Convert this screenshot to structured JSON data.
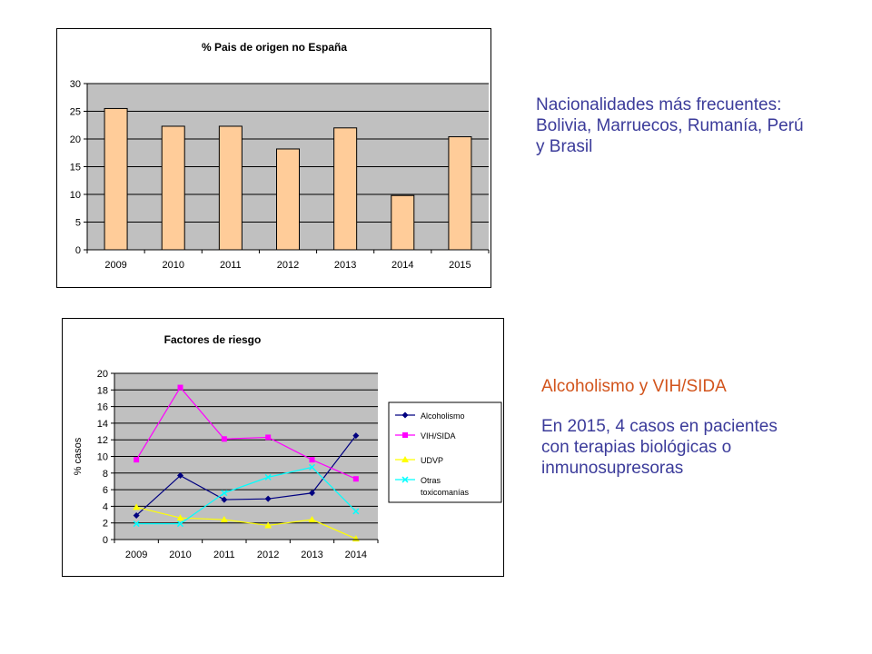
{
  "chart_data": [
    {
      "type": "bar",
      "title": "% Pais de origen no España",
      "categories": [
        "2009",
        "2010",
        "2011",
        "2012",
        "2013",
        "2014",
        "2015"
      ],
      "values": [
        25.5,
        22.3,
        22.3,
        18.2,
        22.0,
        9.8,
        20.4
      ],
      "y_ticks": [
        "0",
        "5",
        "10",
        "15",
        "20",
        "25",
        "30"
      ],
      "ylim": [
        0,
        30
      ],
      "grid": true,
      "colors": {
        "bar": "#FFCC99",
        "plot_bg": "#C0C0C0",
        "grid": "#000000"
      }
    },
    {
      "type": "line",
      "title": "Factores de riesgo",
      "ylabel": "% casos",
      "categories": [
        "2009",
        "2010",
        "2011",
        "2012",
        "2013",
        "2014"
      ],
      "y_ticks": [
        "0",
        "2",
        "4",
        "6",
        "8",
        "10",
        "12",
        "14",
        "16",
        "18",
        "20"
      ],
      "ylim": [
        0,
        20
      ],
      "grid": true,
      "legend_position": "right",
      "series": [
        {
          "name": "Alcoholismo",
          "values": [
            2.9,
            7.7,
            4.8,
            4.9,
            5.6,
            12.5
          ],
          "color": "#000080",
          "marker": "diamond"
        },
        {
          "name": "VIH/SIDA",
          "values": [
            9.6,
            18.3,
            12.1,
            12.3,
            9.6,
            7.3
          ],
          "color": "#FF00FF",
          "marker": "square"
        },
        {
          "name": "UDVP",
          "values": [
            3.9,
            2.6,
            2.4,
            1.7,
            2.4,
            0.1
          ],
          "color": "#FFFF00",
          "marker": "triangle"
        },
        {
          "name_lines": [
            "Otras",
            "toxicomanías"
          ],
          "values": [
            1.9,
            1.9,
            5.6,
            7.5,
            8.7,
            3.4
          ],
          "color": "#00FFFF",
          "marker": "x"
        }
      ],
      "colors": {
        "plot_bg": "#C0C0C0",
        "grid": "#000000"
      }
    }
  ],
  "text_blocks": {
    "nationalities": "Nacionalidades  más frecuentes: Bolivia, Marruecos, Rumanía, Perú y Brasil",
    "risk_title": "Alcoholismo y VIH/SIDA",
    "cases_2015": "En 2015, 4 casos en pacientes con terapias biológicas o inmunosupresoras"
  }
}
